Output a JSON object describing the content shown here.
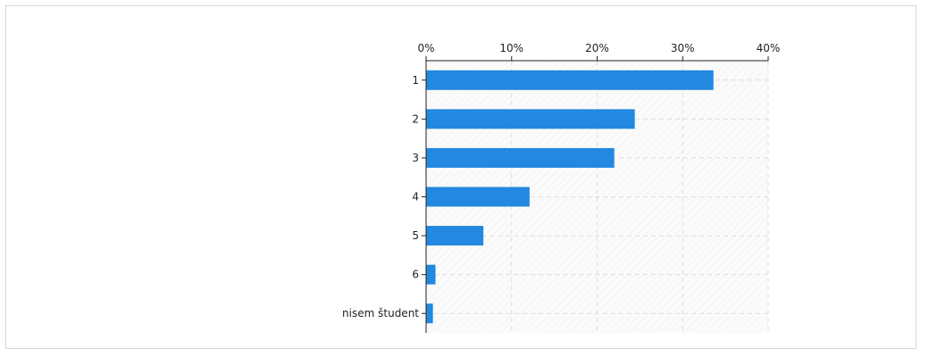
{
  "chart_data": {
    "type": "bar",
    "orientation": "horizontal",
    "title": "",
    "xlabel": "",
    "ylabel": "",
    "categories": [
      "1",
      "2",
      "3",
      "4",
      "5",
      "6",
      "nisem študent"
    ],
    "values": [
      33.6,
      24.4,
      22.0,
      12.1,
      6.7,
      1.1,
      0.8
    ],
    "value_unit": "%",
    "xlim": [
      0,
      40
    ],
    "xticks": [
      0,
      10,
      20,
      30,
      40
    ],
    "tick_labels": [
      "0%",
      "10%",
      "20%",
      "30%",
      "40%"
    ],
    "axis_position": "top",
    "grid": true,
    "legend": "none",
    "bar_color": "#2288e0"
  }
}
